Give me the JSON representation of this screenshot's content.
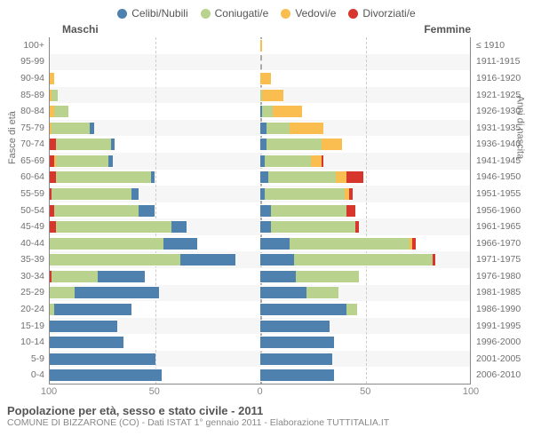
{
  "legend": [
    {
      "label": "Celibi/Nubili",
      "color": "#4f81af"
    },
    {
      "label": "Coniugati/e",
      "color": "#b9d28d"
    },
    {
      "label": "Vedovi/e",
      "color": "#f9be4f"
    },
    {
      "label": "Divorziati/e",
      "color": "#d6362b"
    }
  ],
  "header_left": "Maschi",
  "header_right": "Femmine",
  "axis_left_title": "Fasce di età",
  "axis_right_title": "Anni di nascita",
  "footer_title": "Popolazione per età, sesso e stato civile - 2011",
  "footer_sub": "COMUNE DI BIZZARONE (CO) - Dati ISTAT 1° gennaio 2011 - Elaborazione TUTTITALIA.IT",
  "colors": {
    "single": "#4f81af",
    "married": "#b9d28d",
    "widowed": "#f9be4f",
    "divorced": "#d6362b",
    "grid": "#cccccc",
    "centerline": "#aaaaaa",
    "shade": "#f6f6f6"
  },
  "x_axis": {
    "max": 100,
    "ticks": [
      100,
      50,
      0,
      50,
      100
    ]
  },
  "rows": [
    {
      "age": "100+",
      "year": "≤ 1910",
      "m": [
        0,
        0,
        0,
        0
      ],
      "f": [
        0,
        0,
        1,
        0
      ]
    },
    {
      "age": "95-99",
      "year": "1911-1915",
      "m": [
        0,
        0,
        0,
        0
      ],
      "f": [
        0,
        0,
        0,
        0
      ]
    },
    {
      "age": "90-94",
      "year": "1916-1920",
      "m": [
        0,
        0,
        2,
        0
      ],
      "f": [
        0,
        0,
        5,
        0
      ]
    },
    {
      "age": "85-89",
      "year": "1921-1925",
      "m": [
        0,
        3,
        1,
        0
      ],
      "f": [
        0,
        1,
        10,
        0
      ]
    },
    {
      "age": "80-84",
      "year": "1926-1930",
      "m": [
        0,
        7,
        2,
        0
      ],
      "f": [
        1,
        5,
        14,
        0
      ]
    },
    {
      "age": "75-79",
      "year": "1931-1935",
      "m": [
        2,
        18,
        1,
        0
      ],
      "f": [
        3,
        11,
        16,
        0
      ]
    },
    {
      "age": "70-74",
      "year": "1936-1940",
      "m": [
        2,
        26,
        0,
        3
      ],
      "f": [
        3,
        26,
        10,
        0
      ]
    },
    {
      "age": "65-69",
      "year": "1941-1945",
      "m": [
        2,
        25,
        1,
        2
      ],
      "f": [
        2,
        22,
        5,
        1
      ]
    },
    {
      "age": "60-64",
      "year": "1946-1950",
      "m": [
        2,
        45,
        0,
        3
      ],
      "f": [
        4,
        32,
        5,
        8
      ]
    },
    {
      "age": "55-59",
      "year": "1951-1955",
      "m": [
        3,
        38,
        0,
        1
      ],
      "f": [
        2,
        38,
        2,
        2
      ]
    },
    {
      "age": "50-54",
      "year": "1956-1960",
      "m": [
        8,
        40,
        0,
        2
      ],
      "f": [
        5,
        36,
        0,
        4
      ]
    },
    {
      "age": "45-49",
      "year": "1961-1965",
      "m": [
        7,
        55,
        0,
        3
      ],
      "f": [
        5,
        40,
        0,
        2
      ]
    },
    {
      "age": "40-44",
      "year": "1966-1970",
      "m": [
        16,
        54,
        0,
        0
      ],
      "f": [
        14,
        57,
        1,
        2
      ]
    },
    {
      "age": "35-39",
      "year": "1971-1975",
      "m": [
        26,
        62,
        0,
        0
      ],
      "f": [
        16,
        66,
        0,
        1
      ]
    },
    {
      "age": "30-34",
      "year": "1976-1980",
      "m": [
        22,
        22,
        0,
        1
      ],
      "f": [
        17,
        30,
        0,
        0
      ]
    },
    {
      "age": "25-29",
      "year": "1981-1985",
      "m": [
        40,
        12,
        0,
        0
      ],
      "f": [
        22,
        15,
        0,
        0
      ]
    },
    {
      "age": "20-24",
      "year": "1986-1990",
      "m": [
        37,
        2,
        0,
        0
      ],
      "f": [
        41,
        5,
        0,
        0
      ]
    },
    {
      "age": "15-19",
      "year": "1991-1995",
      "m": [
        32,
        0,
        0,
        0
      ],
      "f": [
        33,
        0,
        0,
        0
      ]
    },
    {
      "age": "10-14",
      "year": "1996-2000",
      "m": [
        35,
        0,
        0,
        0
      ],
      "f": [
        35,
        0,
        0,
        0
      ]
    },
    {
      "age": "5-9",
      "year": "2001-2005",
      "m": [
        50,
        0,
        0,
        0
      ],
      "f": [
        34,
        0,
        0,
        0
      ]
    },
    {
      "age": "0-4",
      "year": "2006-2010",
      "m": [
        53,
        0,
        0,
        0
      ],
      "f": [
        35,
        0,
        0,
        0
      ]
    }
  ]
}
